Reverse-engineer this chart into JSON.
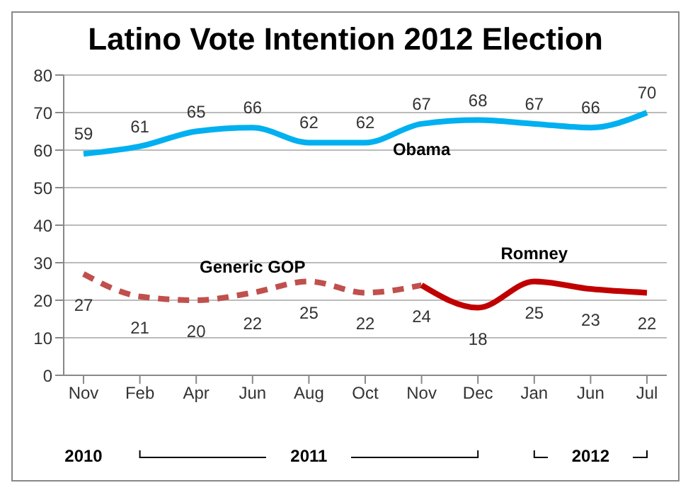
{
  "chart_data": {
    "type": "line",
    "title": "Latino Vote Intention 2012 Election",
    "categories": [
      "Nov",
      "Feb",
      "Apr",
      "Jun",
      "Aug",
      "Oct",
      "Nov",
      "Dec",
      "Jan",
      "Jun",
      "Jul"
    ],
    "series": [
      {
        "name": "Obama",
        "color": "#00b0f0",
        "values": [
          59,
          61,
          65,
          66,
          62,
          62,
          67,
          68,
          67,
          66,
          70
        ],
        "value_labels": [
          "59",
          "61",
          "65",
          "66",
          "62",
          "62",
          "67",
          "68",
          "67",
          "66",
          "70"
        ]
      },
      {
        "name": "Generic GOP",
        "color": "#c0504d",
        "line_style": "dashed",
        "values": [
          27,
          21,
          20,
          22,
          25,
          22,
          24,
          null,
          null,
          null,
          null
        ],
        "value_labels": [
          "27",
          "21",
          "20",
          "22",
          "25",
          "22",
          "24",
          null,
          null,
          null,
          null
        ]
      },
      {
        "name": "Romney",
        "color": "#c00000",
        "values": [
          null,
          null,
          null,
          null,
          null,
          null,
          24,
          18,
          25,
          23,
          22
        ],
        "value_labels": [
          null,
          null,
          null,
          null,
          null,
          null,
          null,
          "18",
          "25",
          "23",
          "22"
        ]
      }
    ],
    "annotations": [
      "2010",
      "2011",
      "2012"
    ],
    "ylim": [
      0,
      80
    ],
    "yticks": [
      0,
      10,
      20,
      30,
      40,
      50,
      60,
      70,
      80
    ],
    "grid": "y",
    "marker": "none"
  }
}
